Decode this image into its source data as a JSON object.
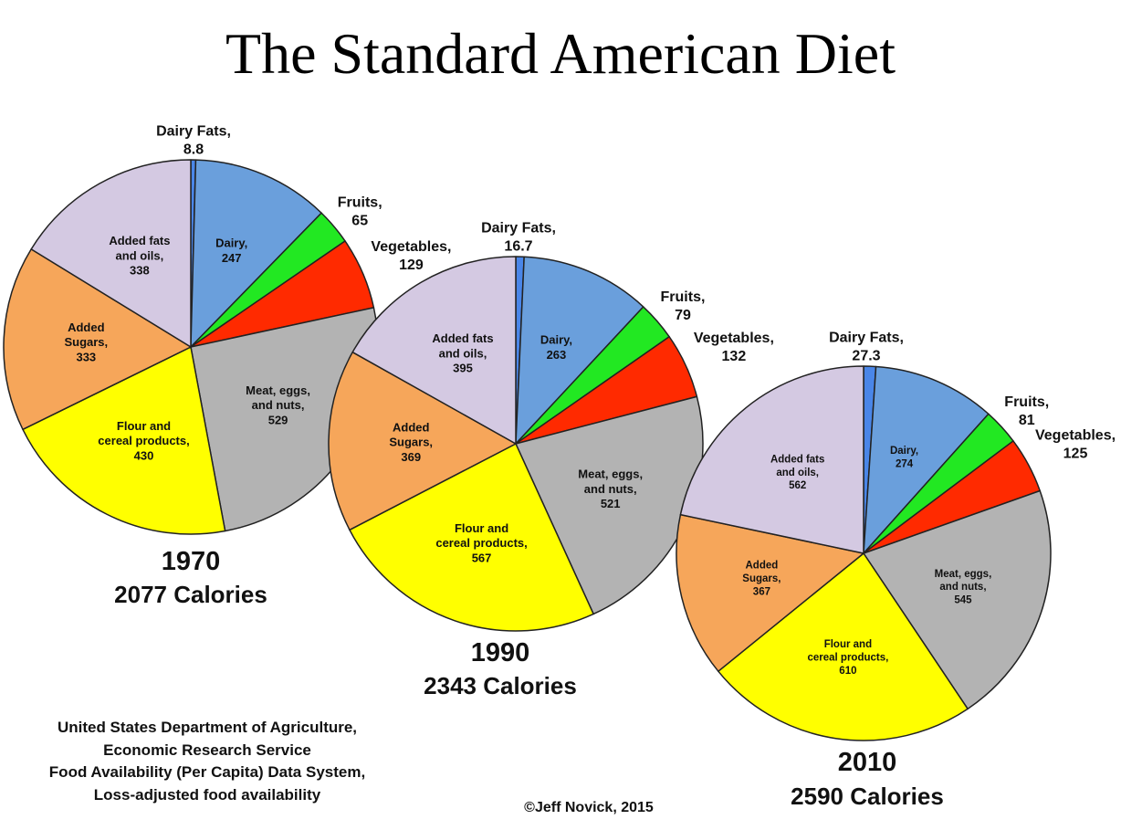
{
  "title": "The Standard American Diet",
  "chart_data": {
    "type": "pie",
    "title": "The Standard American Diet",
    "categories": [
      "Dairy Fats",
      "Dairy",
      "Fruits",
      "Vegetables",
      "Meat, eggs, and nuts",
      "Flour and cereal products",
      "Added Sugars",
      "Added fats and oils"
    ],
    "label_lines": [
      [
        "Dairy Fats,"
      ],
      [
        "Dairy,"
      ],
      [
        "Fruits,"
      ],
      [
        "Vegetables,"
      ],
      [
        "Meat, eggs,",
        "and nuts,"
      ],
      [
        "Flour and",
        "cereal products,"
      ],
      [
        "Added",
        "Sugars,"
      ],
      [
        "Added fats",
        "and oils,"
      ]
    ],
    "label_placement": [
      "outside",
      "inside",
      "outside",
      "outside",
      "inside",
      "inside",
      "inside",
      "inside"
    ],
    "colors": [
      "#4a86e8",
      "#6a9fdc",
      "#22e822",
      "#ff2a00",
      "#b3b3b3",
      "#ffff00",
      "#f6a65a",
      "#d4c9e2"
    ],
    "pies": [
      {
        "year": "1970",
        "total_label": "2077 Calories",
        "values": [
          8.8,
          247,
          65,
          129,
          529,
          430,
          333,
          338
        ],
        "value_labels": [
          "8.8",
          "247",
          "65",
          "129",
          "529",
          "430",
          "333",
          "338"
        ]
      },
      {
        "year": "1990",
        "total_label": "2343 Calories",
        "values": [
          16.7,
          263,
          79,
          132,
          521,
          567,
          369,
          395
        ],
        "value_labels": [
          "16.7",
          "263",
          "79",
          "132",
          "521",
          "567",
          "369",
          "395"
        ]
      },
      {
        "year": "2010",
        "total_label": "2590 Calories",
        "values": [
          27.3,
          274,
          81,
          125,
          545,
          610,
          367,
          562
        ],
        "value_labels": [
          "27.3",
          "274",
          "81",
          "125",
          "545",
          "610",
          "367",
          "562"
        ]
      }
    ]
  },
  "source": {
    "lines": [
      "United States Department of Agriculture,",
      "Economic Research Service",
      "Food Availability (Per Capita) Data System,",
      "Loss-adjusted food availability"
    ]
  },
  "copyright": "©Jeff Novick, 2015"
}
